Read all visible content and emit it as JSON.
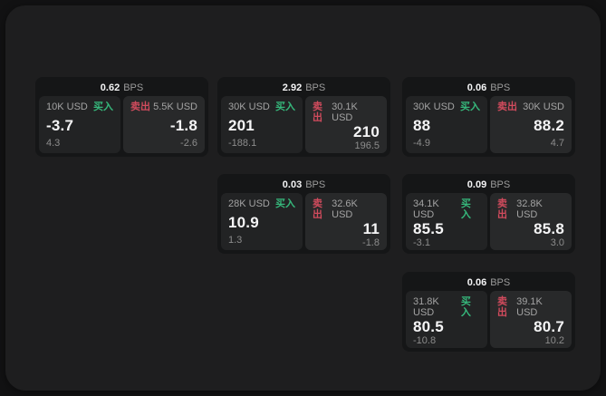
{
  "labels": {
    "bps_unit": "BPS",
    "buy": "买入",
    "sell": "卖出"
  },
  "colors": {
    "buy_green": "#36b97c",
    "sell_red": "#d14b5d",
    "panel_bg": "#1e1e1f",
    "card_bg": "#151617"
  },
  "cards": [
    {
      "bps": "0.62",
      "buy": {
        "size": "10K USD",
        "price": "-3.7",
        "delta": "4.3"
      },
      "sell": {
        "size": "5.5K USD",
        "price": "-1.8",
        "delta": "-2.6"
      },
      "row": 0,
      "col": 0
    },
    {
      "bps": "2.92",
      "buy": {
        "size": "30K USD",
        "price": "201",
        "delta": "-188.1"
      },
      "sell": {
        "size": "30.1K USD",
        "price": "210",
        "delta": "196.5"
      },
      "row": 0,
      "col": 1
    },
    {
      "bps": "0.06",
      "buy": {
        "size": "30K USD",
        "price": "88",
        "delta": "-4.9"
      },
      "sell": {
        "size": "30K USD",
        "price": "88.2",
        "delta": "4.7"
      },
      "row": 0,
      "col": 2
    },
    {
      "bps": "0.03",
      "buy": {
        "size": "28K USD",
        "price": "10.9",
        "delta": "1.3"
      },
      "sell": {
        "size": "32.6K USD",
        "price": "11",
        "delta": "-1.8"
      },
      "row": 1,
      "col": 1
    },
    {
      "bps": "0.09",
      "buy": {
        "size": "34.1K USD",
        "price": "85.5",
        "delta": "-3.1"
      },
      "sell": {
        "size": "32.8K USD",
        "price": "85.8",
        "delta": "3.0"
      },
      "row": 1,
      "col": 2
    },
    {
      "bps": "0.06",
      "buy": {
        "size": "31.8K USD",
        "price": "80.5",
        "delta": "-10.8"
      },
      "sell": {
        "size": "39.1K USD",
        "price": "80.7",
        "delta": "10.2"
      },
      "row": 2,
      "col": 2
    }
  ]
}
